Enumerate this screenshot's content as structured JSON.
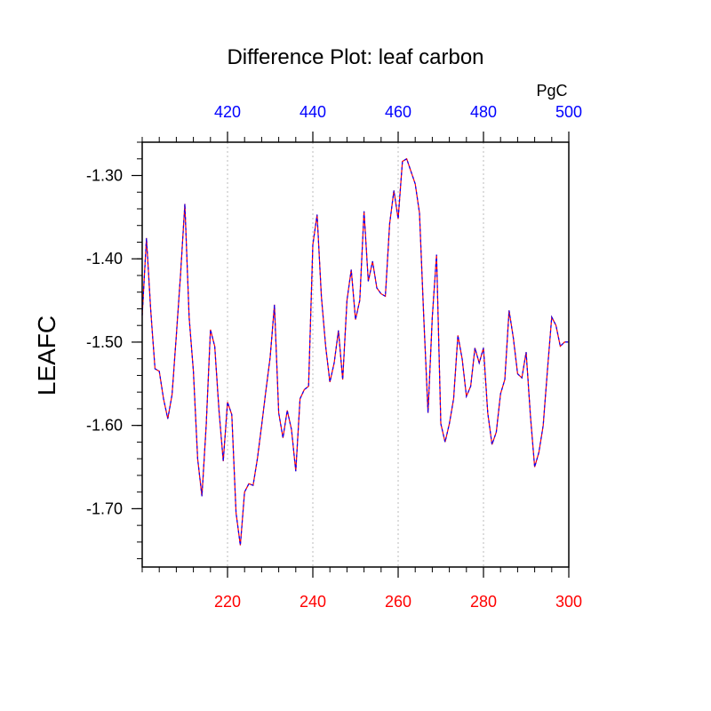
{
  "chart_data": {
    "type": "line",
    "title": "Difference Plot: leaf carbon",
    "ylabel": "LEAFC",
    "top_axis_unit": "PgC",
    "xlim": [
      200,
      300
    ],
    "ylim": [
      -1.77,
      -1.26
    ],
    "x_ticks": [
      220,
      240,
      260,
      280,
      300
    ],
    "x_tick_labels": [
      "220",
      "240",
      "260",
      "280",
      "300"
    ],
    "top_ticks": [
      220,
      240,
      260,
      280,
      300
    ],
    "top_tick_labels": [
      "420",
      "440",
      "460",
      "480",
      "500"
    ],
    "y_ticks": [
      -1.3,
      -1.4,
      -1.5,
      -1.6,
      -1.7
    ],
    "y_tick_labels": [
      "-1.30",
      "-1.40",
      "-1.50",
      "-1.60",
      "-1.70"
    ],
    "grid": "vertical-dotted",
    "series": [
      {
        "color_a": "#ff0000",
        "color_b": "#0000ff",
        "x": [
          200,
          201,
          202,
          203,
          204,
          205,
          206,
          207,
          208,
          209,
          210,
          211,
          212,
          213,
          214,
          215,
          216,
          217,
          218,
          219,
          220,
          221,
          222,
          223,
          224,
          225,
          226,
          227,
          228,
          229,
          230,
          231,
          232,
          233,
          234,
          235,
          236,
          237,
          238,
          239,
          240,
          241,
          242,
          243,
          244,
          245,
          246,
          247,
          248,
          249,
          250,
          251,
          252,
          253,
          254,
          255,
          256,
          257,
          258,
          259,
          260,
          261,
          262,
          263,
          264,
          265,
          266,
          267,
          268,
          269,
          270,
          271,
          272,
          273,
          274,
          275,
          276,
          277,
          278,
          279,
          280,
          281,
          282,
          283,
          284,
          285,
          286,
          287,
          288,
          289,
          290,
          291,
          292,
          293,
          294,
          295,
          296,
          297,
          298,
          299,
          300
        ],
        "values": [
          -1.468,
          -1.375,
          -1.462,
          -1.532,
          -1.535,
          -1.568,
          -1.592,
          -1.563,
          -1.492,
          -1.418,
          -1.334,
          -1.47,
          -1.535,
          -1.64,
          -1.685,
          -1.6,
          -1.485,
          -1.505,
          -1.582,
          -1.643,
          -1.572,
          -1.587,
          -1.705,
          -1.744,
          -1.68,
          -1.67,
          -1.672,
          -1.64,
          -1.6,
          -1.558,
          -1.518,
          -1.455,
          -1.585,
          -1.615,
          -1.582,
          -1.605,
          -1.655,
          -1.568,
          -1.557,
          -1.553,
          -1.383,
          -1.347,
          -1.445,
          -1.505,
          -1.548,
          -1.525,
          -1.486,
          -1.545,
          -1.45,
          -1.413,
          -1.473,
          -1.45,
          -1.343,
          -1.427,
          -1.403,
          -1.435,
          -1.442,
          -1.445,
          -1.358,
          -1.318,
          -1.352,
          -1.283,
          -1.28,
          -1.295,
          -1.31,
          -1.345,
          -1.47,
          -1.585,
          -1.47,
          -1.395,
          -1.598,
          -1.62,
          -1.598,
          -1.568,
          -1.492,
          -1.52,
          -1.565,
          -1.553,
          -1.507,
          -1.525,
          -1.507,
          -1.585,
          -1.623,
          -1.608,
          -1.562,
          -1.545,
          -1.462,
          -1.495,
          -1.538,
          -1.543,
          -1.512,
          -1.588,
          -1.65,
          -1.632,
          -1.6,
          -1.533,
          -1.47,
          -1.48,
          -1.505,
          -1.5,
          -1.5
        ]
      }
    ]
  }
}
